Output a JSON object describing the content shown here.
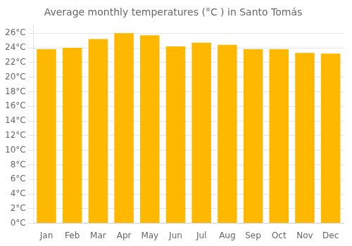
{
  "chart_data": {
    "type": "bar",
    "title": "Average monthly temperatures (°C ) in Santo Tomás",
    "categories": [
      "Jan",
      "Feb",
      "Mar",
      "Apr",
      "May",
      "Jun",
      "Jul",
      "Aug",
      "Sep",
      "Oct",
      "Nov",
      "Dec"
    ],
    "values": [
      23.8,
      24.0,
      25.2,
      26.0,
      25.7,
      24.2,
      24.7,
      24.4,
      23.8,
      23.8,
      23.3,
      23.2
    ],
    "color": "#FFB800",
    "ylim": [
      0,
      27
    ],
    "yticks": [
      {
        "value": 0,
        "label": "0°C"
      },
      {
        "value": 2,
        "label": "2°C"
      },
      {
        "value": 4,
        "label": "4°C"
      },
      {
        "value": 6,
        "label": "6°C"
      },
      {
        "value": 8,
        "label": "8°C"
      },
      {
        "value": 10,
        "label": "10°C"
      },
      {
        "value": 12,
        "label": "12°C"
      },
      {
        "value": 14,
        "label": "14°C"
      },
      {
        "value": 16,
        "label": "16°C"
      },
      {
        "value": 18,
        "label": "18°C"
      },
      {
        "value": 20,
        "label": "20°C"
      },
      {
        "value": 22,
        "label": "22°C"
      },
      {
        "value": 24,
        "label": "24°C"
      },
      {
        "value": 26,
        "label": "26°C"
      }
    ],
    "grid": true
  }
}
